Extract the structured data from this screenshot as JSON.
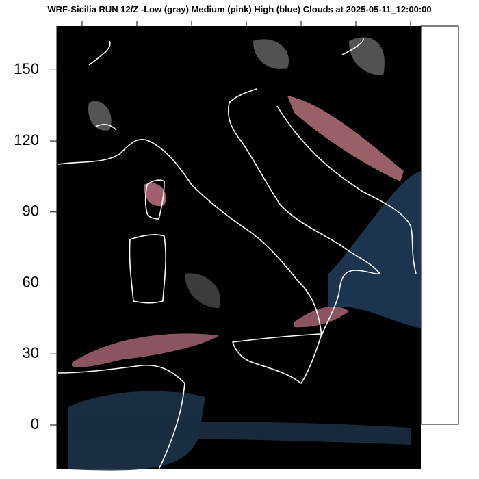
{
  "header": {
    "title": "WRF-Sicilia RUN 12/Z -Low (gray) Medium (pink) High (blue) Clouds at 2025-05-11_12:00:00"
  },
  "map": {
    "ylim": [
      -18.8,
      168.6
    ],
    "yticks": [
      0,
      30,
      60,
      90,
      120,
      150
    ]
  }
}
